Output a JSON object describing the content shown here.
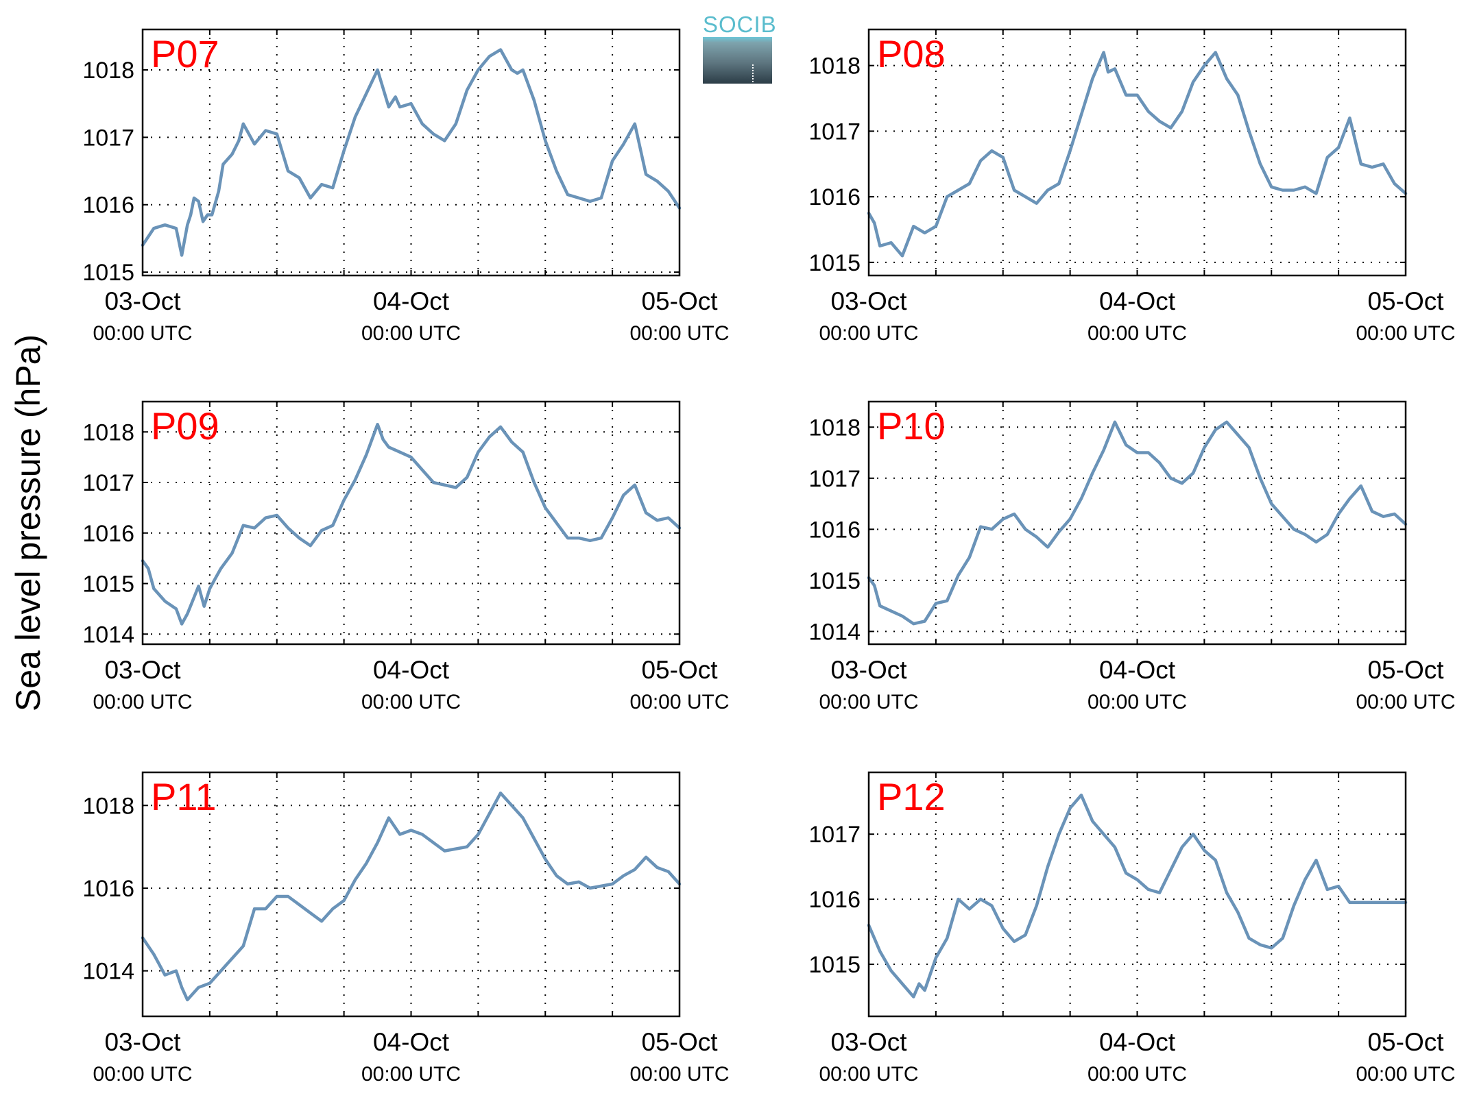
{
  "figure": {
    "ylabel": "Sea level pressure (hPa)",
    "logo_text": "SOCIB",
    "x_tick_dates": [
      "03-Oct",
      "04-Oct",
      "05-Oct"
    ],
    "x_tick_time": "00:00 UTC",
    "line_color": "#6a93b8",
    "panel_label_color": "#ff0000"
  },
  "chart_data": [
    {
      "type": "line",
      "panel": "P07",
      "title": "P07",
      "ylabel": "Sea level pressure (hPa)",
      "xlabel": "",
      "x_unit": "hours since 03-Oct 00:00 UTC",
      "xlim": [
        0,
        48
      ],
      "ylim": [
        1014.95,
        1018.6
      ],
      "yticks": [
        1015,
        1016,
        1017,
        1018
      ],
      "grid": true,
      "x": [
        0,
        1,
        2,
        3,
        3.5,
        4,
        4.3,
        4.6,
        5,
        5.4,
        5.8,
        6.2,
        6.8,
        7.2,
        8,
        8.6,
        9,
        10,
        11,
        12,
        13,
        14,
        15,
        16,
        17,
        18,
        19,
        20,
        21,
        22,
        22.6,
        23,
        24,
        25,
        26,
        27,
        28,
        29,
        30,
        31,
        32,
        33,
        33.5,
        34,
        35,
        36,
        37,
        38,
        39,
        40,
        41,
        42,
        43,
        44,
        45,
        46,
        47,
        48
      ],
      "values": [
        1015.4,
        1015.65,
        1015.7,
        1015.65,
        1015.25,
        1015.7,
        1015.85,
        1016.1,
        1016.05,
        1015.75,
        1015.85,
        1015.85,
        1016.2,
        1016.6,
        1016.75,
        1016.95,
        1017.2,
        1016.9,
        1017.1,
        1017.05,
        1016.5,
        1016.4,
        1016.1,
        1016.3,
        1016.25,
        1016.8,
        1017.3,
        1017.65,
        1018.0,
        1017.45,
        1017.6,
        1017.45,
        1017.5,
        1017.2,
        1017.05,
        1016.95,
        1017.2,
        1017.7,
        1018.0,
        1018.2,
        1018.3,
        1018.0,
        1017.95,
        1018.0,
        1017.55,
        1016.95,
        1016.5,
        1016.15,
        1016.1,
        1016.05,
        1016.1,
        1016.65,
        1016.9,
        1017.2,
        1016.45,
        1016.35,
        1016.2,
        1015.95
      ]
    },
    {
      "type": "line",
      "panel": "P08",
      "title": "P08",
      "ylabel": "Sea level pressure (hPa)",
      "xlabel": "",
      "x_unit": "hours since 03-Oct 00:00 UTC",
      "xlim": [
        0,
        48
      ],
      "ylim": [
        1014.8,
        1018.55
      ],
      "yticks": [
        1015,
        1016,
        1017,
        1018
      ],
      "grid": true,
      "x": [
        0,
        0.5,
        1,
        2,
        3,
        4,
        5,
        6,
        7,
        8,
        9,
        10,
        11,
        12,
        13,
        14,
        15,
        16,
        17,
        18,
        19,
        20,
        21,
        21.4,
        22,
        23,
        24,
        25,
        26,
        27,
        28,
        29,
        30,
        31,
        32,
        33,
        34,
        35,
        36,
        37,
        38,
        39,
        40,
        41,
        42,
        43,
        44,
        45,
        46,
        47,
        48
      ],
      "values": [
        1015.75,
        1015.6,
        1015.25,
        1015.3,
        1015.1,
        1015.55,
        1015.45,
        1015.55,
        1016.0,
        1016.1,
        1016.2,
        1016.55,
        1016.7,
        1016.6,
        1016.1,
        1016.0,
        1015.9,
        1016.1,
        1016.2,
        1016.7,
        1017.25,
        1017.8,
        1018.2,
        1017.9,
        1017.95,
        1017.55,
        1017.55,
        1017.3,
        1017.15,
        1017.05,
        1017.3,
        1017.75,
        1018.0,
        1018.2,
        1017.8,
        1017.55,
        1017.0,
        1016.5,
        1016.15,
        1016.1,
        1016.1,
        1016.15,
        1016.05,
        1016.6,
        1016.75,
        1017.2,
        1016.5,
        1016.45,
        1016.5,
        1016.2,
        1016.05
      ]
    },
    {
      "type": "line",
      "panel": "P09",
      "title": "P09",
      "ylabel": "Sea level pressure (hPa)",
      "xlabel": "",
      "x_unit": "hours since 03-Oct 00:00 UTC",
      "xlim": [
        0,
        48
      ],
      "ylim": [
        1013.8,
        1018.6
      ],
      "yticks": [
        1014,
        1015,
        1016,
        1017,
        1018
      ],
      "grid": true,
      "x": [
        0,
        0.5,
        1,
        2,
        3,
        3.5,
        4,
        5,
        5.5,
        6,
        6.5,
        7,
        8,
        9,
        10,
        11,
        12,
        13,
        14,
        15,
        16,
        17,
        18,
        19,
        20,
        21,
        21.5,
        22,
        23,
        24,
        25,
        26,
        27,
        28,
        29,
        30,
        31,
        32,
        33,
        34,
        35,
        36,
        37,
        38,
        39,
        40,
        41,
        42,
        43,
        44,
        45,
        46,
        47,
        48
      ],
      "values": [
        1015.45,
        1015.3,
        1014.9,
        1014.65,
        1014.5,
        1014.2,
        1014.4,
        1014.95,
        1014.55,
        1014.9,
        1015.1,
        1015.3,
        1015.6,
        1016.15,
        1016.1,
        1016.3,
        1016.35,
        1016.1,
        1015.9,
        1015.75,
        1016.05,
        1016.15,
        1016.65,
        1017.05,
        1017.55,
        1018.15,
        1017.85,
        1017.7,
        1017.6,
        1017.5,
        1017.25,
        1017.0,
        1016.95,
        1016.9,
        1017.1,
        1017.6,
        1017.9,
        1018.1,
        1017.8,
        1017.6,
        1017.0,
        1016.5,
        1016.2,
        1015.9,
        1015.9,
        1015.85,
        1015.9,
        1016.3,
        1016.75,
        1016.95,
        1016.4,
        1016.25,
        1016.3,
        1016.1
      ]
    },
    {
      "type": "line",
      "panel": "P10",
      "title": "P10",
      "ylabel": "Sea level pressure (hPa)",
      "xlabel": "",
      "x_unit": "hours since 03-Oct 00:00 UTC",
      "xlim": [
        0,
        48
      ],
      "ylim": [
        1013.75,
        1018.5
      ],
      "yticks": [
        1014,
        1015,
        1016,
        1017,
        1018
      ],
      "grid": true,
      "x": [
        0,
        0.5,
        1,
        2,
        3,
        4,
        5,
        6,
        7,
        8,
        9,
        10,
        11,
        12,
        13,
        14,
        15,
        16,
        17,
        18,
        19,
        20,
        21,
        22,
        23,
        24,
        25,
        26,
        27,
        28,
        29,
        30,
        31,
        32,
        33,
        34,
        35,
        36,
        37,
        38,
        39,
        40,
        41,
        42,
        43,
        44,
        45,
        46,
        47,
        48
      ],
      "values": [
        1015.05,
        1014.9,
        1014.5,
        1014.4,
        1014.3,
        1014.15,
        1014.2,
        1014.55,
        1014.6,
        1015.1,
        1015.45,
        1016.05,
        1016.0,
        1016.2,
        1016.3,
        1016.0,
        1015.85,
        1015.65,
        1015.95,
        1016.2,
        1016.6,
        1017.1,
        1017.55,
        1018.1,
        1017.65,
        1017.5,
        1017.5,
        1017.3,
        1017.0,
        1016.9,
        1017.1,
        1017.6,
        1017.95,
        1018.1,
        1017.85,
        1017.6,
        1017.0,
        1016.5,
        1016.25,
        1016.0,
        1015.9,
        1015.75,
        1015.9,
        1016.3,
        1016.6,
        1016.85,
        1016.35,
        1016.25,
        1016.3,
        1016.1
      ]
    },
    {
      "type": "line",
      "panel": "P11",
      "title": "P11",
      "ylabel": "Sea level pressure (hPa)",
      "xlabel": "",
      "x_unit": "hours since 03-Oct 00:00 UTC",
      "xlim": [
        0,
        48
      ],
      "ylim": [
        1012.9,
        1018.8
      ],
      "yticks": [
        1014,
        1016,
        1018
      ],
      "grid": true,
      "x": [
        0,
        1,
        2,
        3,
        3.5,
        4,
        5,
        6,
        7,
        8,
        9,
        10,
        11,
        12,
        13,
        14,
        15,
        16,
        17,
        18,
        19,
        20,
        21,
        22,
        23,
        24,
        25,
        26,
        27,
        28,
        29,
        30,
        31,
        32,
        33,
        34,
        35,
        36,
        37,
        38,
        39,
        40,
        41,
        42,
        43,
        44,
        45,
        46,
        47,
        48
      ],
      "values": [
        1014.8,
        1014.4,
        1013.9,
        1014.0,
        1013.6,
        1013.3,
        1013.6,
        1013.7,
        1014.0,
        1014.3,
        1014.6,
        1015.5,
        1015.5,
        1015.8,
        1015.8,
        1015.6,
        1015.4,
        1015.2,
        1015.5,
        1015.7,
        1016.2,
        1016.6,
        1017.1,
        1017.7,
        1017.3,
        1017.4,
        1017.3,
        1017.1,
        1016.9,
        1016.95,
        1017.0,
        1017.3,
        1017.8,
        1018.3,
        1018.0,
        1017.7,
        1017.2,
        1016.7,
        1016.3,
        1016.1,
        1016.15,
        1016.0,
        1016.05,
        1016.1,
        1016.3,
        1016.45,
        1016.75,
        1016.5,
        1016.4,
        1016.1
      ]
    },
    {
      "type": "line",
      "panel": "P12",
      "title": "P12",
      "ylabel": "Sea level pressure (hPa)",
      "xlabel": "",
      "x_unit": "hours since 03-Oct 00:00 UTC",
      "xlim": [
        0,
        48
      ],
      "ylim": [
        1014.2,
        1017.95
      ],
      "yticks": [
        1015,
        1016,
        1017
      ],
      "grid": true,
      "x": [
        0,
        1,
        2,
        3,
        4,
        4.5,
        5,
        6,
        7,
        8,
        9,
        10,
        11,
        12,
        13,
        14,
        15,
        16,
        17,
        18,
        19,
        20,
        21,
        22,
        23,
        24,
        25,
        26,
        27,
        28,
        29,
        30,
        31,
        32,
        33,
        34,
        35,
        36,
        37,
        38,
        39,
        40,
        41,
        42,
        43,
        44,
        45,
        46,
        47,
        48
      ],
      "values": [
        1015.6,
        1015.2,
        1014.9,
        1014.7,
        1014.5,
        1014.7,
        1014.6,
        1015.1,
        1015.4,
        1016.0,
        1015.85,
        1016.0,
        1015.9,
        1015.55,
        1015.35,
        1015.45,
        1015.9,
        1016.5,
        1017.0,
        1017.4,
        1017.6,
        1017.2,
        1017.0,
        1016.8,
        1016.4,
        1016.3,
        1016.15,
        1016.1,
        1016.45,
        1016.8,
        1017.0,
        1016.75,
        1016.6,
        1016.1,
        1015.8,
        1015.4,
        1015.3,
        1015.25,
        1015.4,
        1015.9,
        1016.3,
        1016.6,
        1016.15,
        1016.2,
        1015.95,
        1015.95,
        1015.95,
        1015.95,
        1015.95,
        1015.95
      ]
    }
  ]
}
